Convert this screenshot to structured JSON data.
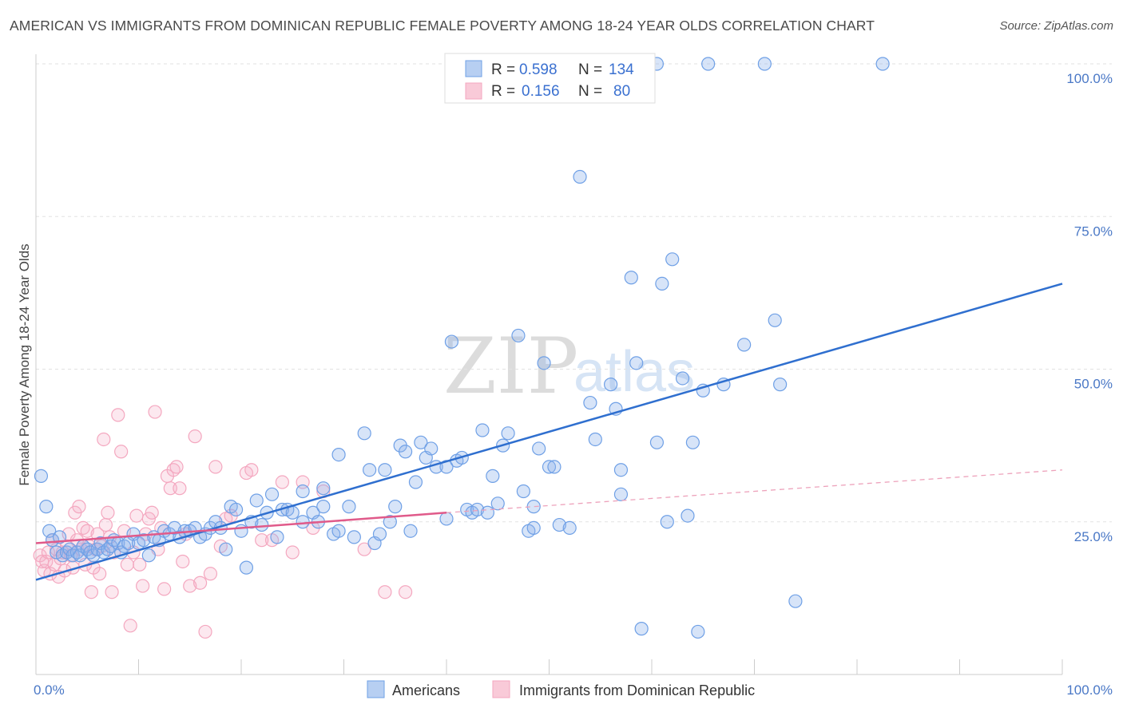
{
  "title": "AMERICAN VS IMMIGRANTS FROM DOMINICAN REPUBLIC FEMALE POVERTY AMONG 18-24 YEAR OLDS CORRELATION CHART",
  "source": "Source: ZipAtlas.com",
  "watermark": {
    "zip": "ZIP",
    "atlas": "atlas"
  },
  "chart_data": {
    "type": "scatter",
    "ylabel": "Female Poverty Among 18-24 Year Olds",
    "xlim": [
      0,
      100
    ],
    "ylim": [
      0,
      100
    ],
    "x_tick_labels": [
      {
        "value": 0,
        "label": "0.0%"
      },
      {
        "value": 100,
        "label": "100.0%"
      }
    ],
    "y_tick_labels": [
      {
        "value": 25,
        "label": "25.0%"
      },
      {
        "value": 50,
        "label": "50.0%"
      },
      {
        "value": 75,
        "label": "75.0%"
      },
      {
        "value": 100,
        "label": "100.0%"
      }
    ],
    "grid": "horizontal dashed",
    "legend_position": "top-center",
    "series": [
      {
        "name": "Americans",
        "color": "#6fa0e6",
        "line_color": "#2f6fcf",
        "R": "0.598",
        "N": "134",
        "trend": {
          "x0": 0,
          "y0": 15.5,
          "x1": 100,
          "y1": 64
        },
        "points": [
          [
            0.5,
            32.5
          ],
          [
            1,
            27.5
          ],
          [
            1.3,
            23.5
          ],
          [
            1.6,
            22
          ],
          [
            2,
            20
          ],
          [
            2.3,
            22.5
          ],
          [
            2.6,
            19.5
          ],
          [
            3,
            20
          ],
          [
            3.3,
            20.5
          ],
          [
            3.6,
            19.5
          ],
          [
            4,
            20
          ],
          [
            4.3,
            19.5
          ],
          [
            4.6,
            21
          ],
          [
            5,
            20.5
          ],
          [
            5.3,
            20
          ],
          [
            5.6,
            19.5
          ],
          [
            6,
            20.5
          ],
          [
            6.3,
            21.5
          ],
          [
            6.6,
            20
          ],
          [
            7,
            20.5
          ],
          [
            7.3,
            21
          ],
          [
            7.6,
            22
          ],
          [
            8,
            21.5
          ],
          [
            8.3,
            20
          ],
          [
            8.6,
            21
          ],
          [
            9,
            21.5
          ],
          [
            9.5,
            23
          ],
          [
            10,
            21.5
          ],
          [
            10.5,
            22
          ],
          [
            11,
            19.5
          ],
          [
            11.5,
            22.5
          ],
          [
            12,
            22
          ],
          [
            12.5,
            23.5
          ],
          [
            13,
            23
          ],
          [
            13.5,
            24
          ],
          [
            14,
            22.5
          ],
          [
            14.5,
            23.5
          ],
          [
            15,
            23.5
          ],
          [
            15.5,
            24
          ],
          [
            16,
            22.5
          ],
          [
            16.5,
            23
          ],
          [
            17,
            24
          ],
          [
            17.5,
            25
          ],
          [
            18,
            24
          ],
          [
            18.5,
            20.5
          ],
          [
            19,
            27.5
          ],
          [
            19.5,
            27
          ],
          [
            20,
            23.5
          ],
          [
            20.5,
            17.5
          ],
          [
            21,
            25
          ],
          [
            21.5,
            28.5
          ],
          [
            22,
            24.5
          ],
          [
            22.5,
            26.5
          ],
          [
            23,
            29.5
          ],
          [
            23.5,
            22.5
          ],
          [
            24,
            27
          ],
          [
            24.5,
            27
          ],
          [
            25,
            26.5
          ],
          [
            26,
            30
          ],
          [
            26,
            25
          ],
          [
            27,
            26.5
          ],
          [
            27.5,
            25
          ],
          [
            28,
            27.5
          ],
          [
            28,
            30.5
          ],
          [
            29,
            23
          ],
          [
            29.5,
            23.5
          ],
          [
            29.5,
            36
          ],
          [
            30.5,
            27.5
          ],
          [
            31,
            22.5
          ],
          [
            32,
            39.5
          ],
          [
            32.5,
            33.5
          ],
          [
            33,
            21.5
          ],
          [
            33.5,
            23
          ],
          [
            34,
            33.5
          ],
          [
            34.5,
            25
          ],
          [
            35,
            27.5
          ],
          [
            35.5,
            37.5
          ],
          [
            36,
            36.5
          ],
          [
            36.5,
            23.5
          ],
          [
            37,
            31.5
          ],
          [
            37.5,
            38
          ],
          [
            38,
            35.5
          ],
          [
            38.5,
            37
          ],
          [
            39,
            34
          ],
          [
            40,
            34
          ],
          [
            40,
            25.5
          ],
          [
            40.5,
            54.5
          ],
          [
            41,
            35
          ],
          [
            41.5,
            35.5
          ],
          [
            42,
            27
          ],
          [
            42.5,
            26.5
          ],
          [
            43,
            27
          ],
          [
            43.5,
            40
          ],
          [
            44,
            26.5
          ],
          [
            44.5,
            32.5
          ],
          [
            45,
            28
          ],
          [
            45.5,
            37.5
          ],
          [
            46,
            39.5
          ],
          [
            47,
            55.5
          ],
          [
            47.5,
            30
          ],
          [
            48,
            23.5
          ],
          [
            48.5,
            27.5
          ],
          [
            48.5,
            24
          ],
          [
            49,
            37
          ],
          [
            49.5,
            51
          ],
          [
            50,
            34
          ],
          [
            50.5,
            34
          ],
          [
            51,
            24.5
          ],
          [
            52,
            24
          ],
          [
            53,
            81.5
          ],
          [
            54,
            44.5
          ],
          [
            54.5,
            38.5
          ],
          [
            56,
            47.5
          ],
          [
            56.5,
            43.5
          ],
          [
            57,
            33.5
          ],
          [
            57,
            29.5
          ],
          [
            58,
            65
          ],
          [
            58.5,
            51
          ],
          [
            59,
            7.5
          ],
          [
            60.5,
            38
          ],
          [
            60.5,
            100
          ],
          [
            61,
            64
          ],
          [
            61.5,
            25
          ],
          [
            62,
            68
          ],
          [
            63,
            48.5
          ],
          [
            63.5,
            26
          ],
          [
            64,
            38
          ],
          [
            64.5,
            7
          ],
          [
            65,
            46.5
          ],
          [
            65.5,
            100
          ],
          [
            67,
            47.5
          ],
          [
            69,
            54
          ],
          [
            71,
            100
          ],
          [
            72,
            58
          ],
          [
            72.5,
            47.5
          ],
          [
            74,
            12
          ],
          [
            82.5,
            100
          ]
        ]
      },
      {
        "name": "Immigrants from Dominican Republic",
        "color": "#f4a7bf",
        "line_color": "#e05a8a",
        "R": "0.156",
        "N": "80",
        "trend": {
          "x0": 0,
          "y0": 21.5,
          "x1": 40,
          "y1": 26.5
        },
        "trend_dashed": {
          "x0": 40,
          "y0": 26.5,
          "x1": 100,
          "y1": 33.5
        },
        "points": [
          [
            0.4,
            19.5
          ],
          [
            0.6,
            18.5
          ],
          [
            0.8,
            17
          ],
          [
            1,
            18.5
          ],
          [
            1.2,
            20
          ],
          [
            1.4,
            16.5
          ],
          [
            1.6,
            22
          ],
          [
            1.8,
            18
          ],
          [
            2,
            20.5
          ],
          [
            2.2,
            16
          ],
          [
            2.4,
            19
          ],
          [
            2.6,
            20
          ],
          [
            2.8,
            17
          ],
          [
            3,
            21
          ],
          [
            3.2,
            23
          ],
          [
            3.4,
            19.5
          ],
          [
            3.6,
            17.5
          ],
          [
            3.8,
            26.5
          ],
          [
            4,
            22
          ],
          [
            4.2,
            27.5
          ],
          [
            4.4,
            20.5
          ],
          [
            4.6,
            24
          ],
          [
            4.8,
            18
          ],
          [
            5,
            23.5
          ],
          [
            5.2,
            21
          ],
          [
            5.4,
            13.5
          ],
          [
            5.6,
            17.5
          ],
          [
            5.8,
            20.5
          ],
          [
            6,
            23
          ],
          [
            6.2,
            16.5
          ],
          [
            6.4,
            21
          ],
          [
            6.6,
            38.5
          ],
          [
            6.8,
            24.5
          ],
          [
            7,
            26.5
          ],
          [
            7.2,
            22.5
          ],
          [
            7.4,
            13.5
          ],
          [
            7.6,
            20
          ],
          [
            8,
            42.5
          ],
          [
            8.3,
            36.5
          ],
          [
            8.6,
            23.5
          ],
          [
            8.9,
            18
          ],
          [
            9.2,
            8
          ],
          [
            9.5,
            20
          ],
          [
            9.8,
            26
          ],
          [
            10.1,
            18
          ],
          [
            10.4,
            14.5
          ],
          [
            10.7,
            23
          ],
          [
            11,
            25.5
          ],
          [
            11.3,
            26.5
          ],
          [
            11.6,
            43
          ],
          [
            11.9,
            20.5
          ],
          [
            12.2,
            24
          ],
          [
            12.5,
            14
          ],
          [
            12.8,
            32.5
          ],
          [
            13.1,
            30.5
          ],
          [
            13.4,
            33.5
          ],
          [
            13.7,
            34
          ],
          [
            14,
            30.5
          ],
          [
            14.3,
            18.5
          ],
          [
            14.6,
            23
          ],
          [
            15,
            14.5
          ],
          [
            15.5,
            39
          ],
          [
            16,
            15
          ],
          [
            16.5,
            7
          ],
          [
            17,
            16.5
          ],
          [
            17.5,
            34
          ],
          [
            18,
            21
          ],
          [
            18.5,
            25.5
          ],
          [
            19,
            26
          ],
          [
            20.5,
            33
          ],
          [
            21,
            33.5
          ],
          [
            22,
            22
          ],
          [
            23,
            22
          ],
          [
            24,
            31.5
          ],
          [
            25,
            20
          ],
          [
            26,
            31.5
          ],
          [
            27,
            24
          ],
          [
            28,
            30
          ],
          [
            32,
            20.5
          ],
          [
            34,
            13.5
          ],
          [
            36,
            13.5
          ]
        ]
      }
    ]
  },
  "legend": {
    "r_label": "R =",
    "n_label": "N =",
    "entries": [
      {
        "r": "0.598",
        "n": "134"
      },
      {
        "r": "0.156",
        "n": "80"
      }
    ]
  },
  "bottom_legend": [
    "Americans",
    "Immigrants from Dominican Republic"
  ]
}
